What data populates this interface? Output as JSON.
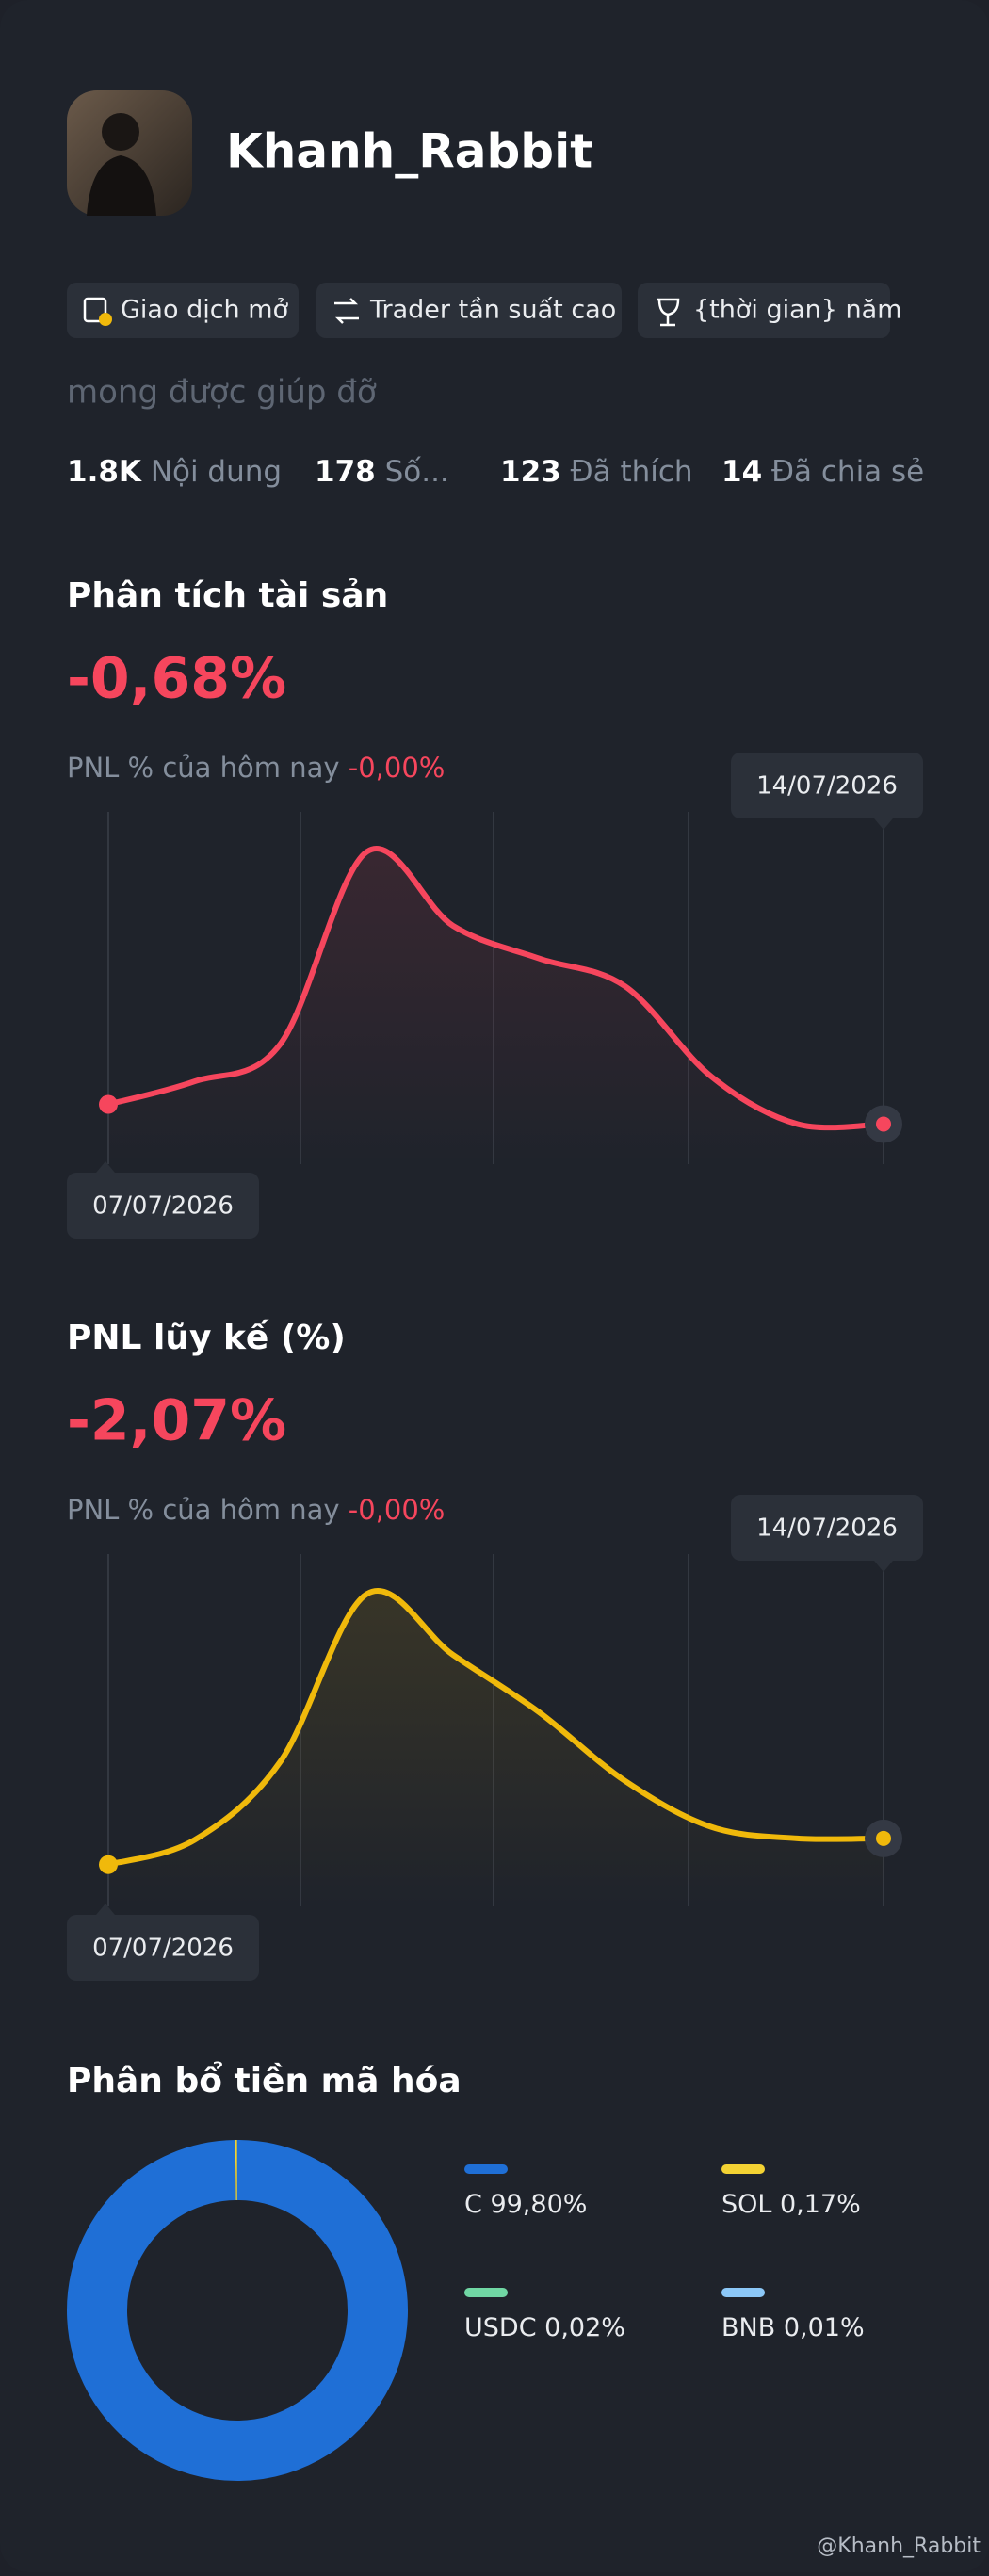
{
  "profile": {
    "name": "Khanh_Rabbit",
    "badges": [
      "Giao dịch mở",
      "Trader tần suất cao",
      "{thời gian} năm"
    ],
    "bio": "mong được giúp đỡ",
    "stats": [
      {
        "value": "1.8K",
        "label": "Nội dung"
      },
      {
        "value": 178,
        "label": "Số..."
      },
      {
        "value": 123,
        "label": "Đã thích"
      },
      {
        "value": 14,
        "label": "Đã chia sẻ"
      }
    ]
  },
  "asset_chart": {
    "type": "line",
    "title": "Phân tích tài sản",
    "value": "-0,68%",
    "pnl_label": "PNL % của hôm nay",
    "pnl_value": "-0,00%",
    "start_date": "07/07/2026",
    "end_date": "14/07/2026",
    "color": "#f6465d",
    "values": [
      33,
      47,
      70,
      187,
      142,
      122,
      105,
      50,
      21,
      21
    ]
  },
  "cumulative_chart": {
    "type": "line",
    "title": "PNL lũy kế (%)",
    "value": "-2,07%",
    "pnl_label": "PNL % của hôm nay",
    "pnl_value": "-0,00%",
    "start_date": "07/07/2026",
    "end_date": "14/07/2026",
    "color": "#f0b90b",
    "values": [
      22,
      37,
      85,
      187,
      150,
      115,
      73,
      45,
      38,
      38
    ]
  },
  "allocation": {
    "type": "pie",
    "title": "Phân bổ tiền mã hóa",
    "items": [
      {
        "name": "C",
        "value": 99.8,
        "label": "99,80%",
        "color": "#1f6fd6"
      },
      {
        "name": "SOL",
        "value": 0.17,
        "label": "0,17%",
        "color": "#f3d233"
      },
      {
        "name": "USDC",
        "value": 0.02,
        "label": "0,02%",
        "color": "#70d7a4"
      },
      {
        "name": "BNB",
        "value": 0.01,
        "label": "0,01%",
        "color": "#8cc8f8"
      }
    ]
  },
  "watermark": "@Khanh_Rabbit"
}
